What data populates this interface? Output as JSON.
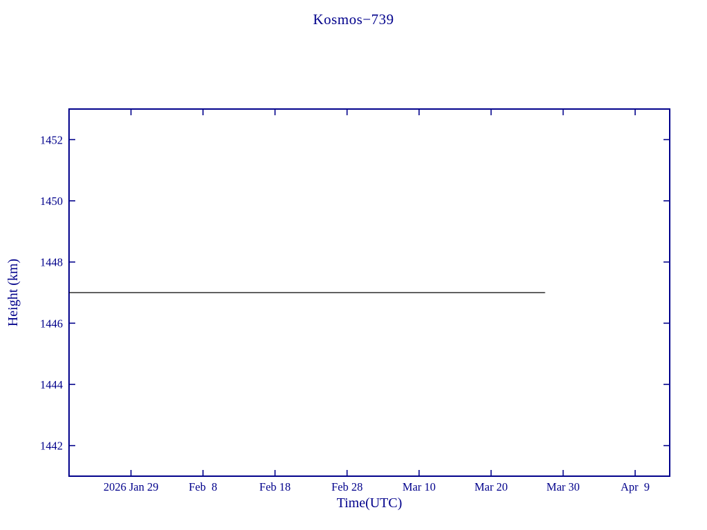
{
  "chart_data": {
    "type": "line",
    "title": "Kosmos−739",
    "xlabel": "Time(UTC)",
    "ylabel": "Height (km)",
    "grid": false,
    "legend": "none",
    "axis_color": "#00008b",
    "text_color": "#00008b",
    "x_ticks": [
      {
        "day": 0,
        "label": "2026 Jan 29"
      },
      {
        "day": 10,
        "label": "Feb  8"
      },
      {
        "day": 20,
        "label": "Feb 18"
      },
      {
        "day": 30,
        "label": "Feb 28"
      },
      {
        "day": 40,
        "label": "Mar 10"
      },
      {
        "day": 50,
        "label": "Mar 20"
      },
      {
        "day": 60,
        "label": "Mar 30"
      },
      {
        "day": 70,
        "label": "Apr  9"
      }
    ],
    "xlim_days": [
      -8.6,
      74.8
    ],
    "y_ticks": [
      1442,
      1444,
      1446,
      1448,
      1450,
      1452
    ],
    "ylim": [
      1441.0,
      1453.0
    ],
    "series": [
      {
        "name": "height-km",
        "color": "#000000",
        "points": [
          {
            "day": -8.6,
            "y": 1447.0
          },
          {
            "day": 57.5,
            "y": 1447.0
          }
        ]
      }
    ]
  }
}
